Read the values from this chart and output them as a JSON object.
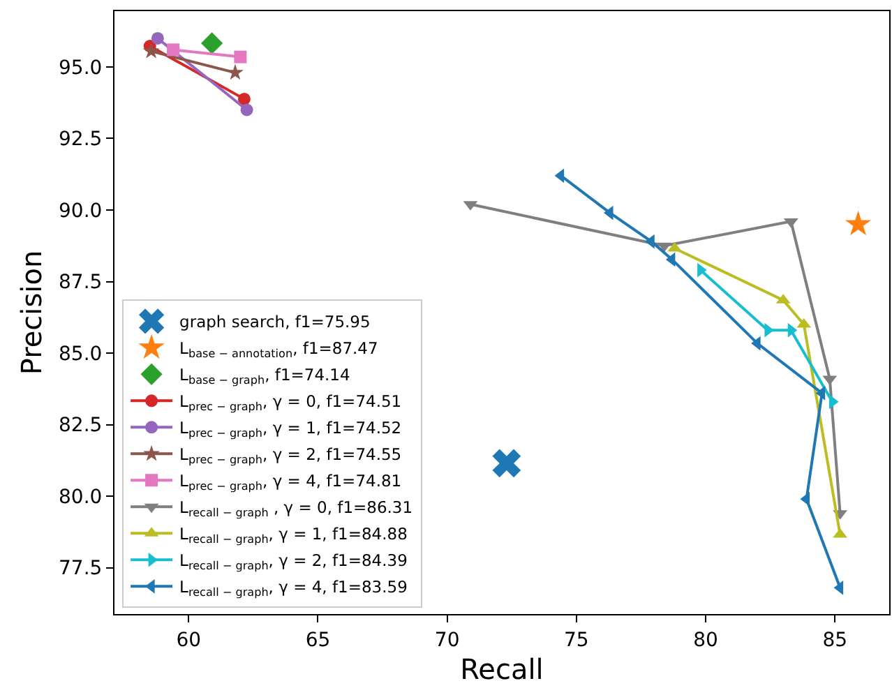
{
  "chart_data": {
    "type": "line",
    "xlabel": "Recall",
    "ylabel": "Precision",
    "xlim": [
      57.13,
      87.1
    ],
    "xticks": [
      60,
      65,
      70,
      75,
      80,
      85
    ],
    "ylim": [
      75.88,
      96.95
    ],
    "yticks": [
      {
        "value": 77.5,
        "label": "77.5"
      },
      {
        "value": 80,
        "label": "80.0"
      },
      {
        "value": 82.5,
        "label": "82.5"
      },
      {
        "value": 85,
        "label": "85.0"
      },
      {
        "value": 87.5,
        "label": "87.5"
      },
      {
        "value": 90,
        "label": "90.0"
      },
      {
        "value": 92.5,
        "label": "92.5"
      },
      {
        "value": 95,
        "label": "95.0"
      }
    ],
    "grid": false,
    "legend": "bottom left",
    "series": [
      {
        "type": "scatter",
        "marker": "cross",
        "name": "graph search, f1=75.95",
        "color": "#1f77b4",
        "x": [
          72.3
        ],
        "values": [
          81.15
        ]
      },
      {
        "type": "scatter",
        "marker": "star",
        "name": "L$_{base − annotation}$, f1=87.47",
        "color": "#ff7f0e",
        "x": [
          85.9
        ],
        "values": [
          89.5
        ]
      },
      {
        "type": "scatter",
        "marker": "diamond",
        "name": "L$_{base − graph}$, f1=74.14",
        "color": "#2ca02c",
        "x": [
          60.9
        ],
        "values": [
          95.83
        ]
      },
      {
        "marker": "circle",
        "name": "L$_{prec − graph}$, γ = 0, f1=74.51",
        "color": "#d62728",
        "x": [
          58.5,
          62.15
        ],
        "values": [
          95.73,
          93.88
        ]
      },
      {
        "marker": "circle",
        "name": "L$_{prec − graph}$, γ = 1, f1=74.52",
        "color": "#9467bd",
        "x": [
          58.8,
          62.25
        ],
        "values": [
          96.0,
          93.5
        ]
      },
      {
        "marker": "star",
        "name": "L$_{prec − graph}$, γ = 2, f1=74.55",
        "color": "#8c564b",
        "x": [
          58.55,
          61.8
        ],
        "values": [
          95.55,
          94.8
        ]
      },
      {
        "marker": "square",
        "name": "L$_{prec − graph}$, γ = 4, f1=74.81",
        "color": "#e377c2",
        "x": [
          59.4,
          62.0
        ],
        "values": [
          95.6,
          95.35
        ]
      },
      {
        "marker": "triangle-down",
        "name": "L$_{recall − graph}$ , γ = 0, f1=86.31",
        "color": "#7f7f7f",
        "x": [
          70.9,
          78.4,
          83.3,
          84.8,
          85.2
        ],
        "values": [
          90.2,
          88.75,
          89.6,
          84.1,
          79.4
        ]
      },
      {
        "marker": "triangle-up",
        "name": "L$_{recall − graph}$, γ = 1, f1=84.88",
        "color": "#bcbd22",
        "x": [
          78.8,
          83.0,
          83.8,
          85.2
        ],
        "values": [
          88.66,
          86.85,
          86.0,
          78.66
        ]
      },
      {
        "marker": "triangle-right",
        "name": "L$_{recall − graph}$, γ = 2, f1=84.39",
        "color": "#17becf",
        "x": [
          79.8,
          82.4,
          83.3,
          84.9
        ],
        "values": [
          87.9,
          85.8,
          85.8,
          83.3
        ]
      },
      {
        "marker": "triangle-left",
        "name": "L$_{recall − graph}$, γ = 4, f1=83.59",
        "color": "#1f77b4",
        "x": [
          74.4,
          76.3,
          77.9,
          78.7,
          82.0,
          84.5,
          83.9,
          85.2
        ],
        "values": [
          91.2,
          89.9,
          88.9,
          88.27,
          85.34,
          83.6,
          79.9,
          76.8
        ]
      }
    ]
  }
}
